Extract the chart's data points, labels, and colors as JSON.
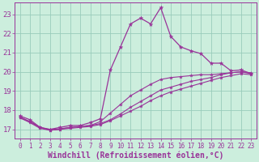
{
  "background_color": "#cceedd",
  "line_color": "#993399",
  "grid_color": "#99ccbb",
  "xlabel": "Windchill (Refroidissement éolien,°C)",
  "xlabel_color": "#993399",
  "xticks": [
    0,
    1,
    2,
    3,
    4,
    5,
    6,
    7,
    8,
    9,
    10,
    11,
    12,
    13,
    14,
    15,
    16,
    17,
    18,
    19,
    20,
    21,
    22,
    23
  ],
  "yticks": [
    17,
    18,
    19,
    20,
    21,
    22,
    23
  ],
  "ylim": [
    16.5,
    23.6
  ],
  "xlim": [
    -0.5,
    23.5
  ],
  "line1": [
    17.7,
    17.5,
    17.1,
    17.0,
    17.1,
    17.2,
    17.2,
    17.35,
    17.55,
    20.1,
    21.3,
    22.5,
    22.8,
    22.5,
    23.35,
    21.85,
    21.3,
    21.1,
    20.95,
    20.45,
    20.45,
    20.05,
    20.1,
    19.9
  ],
  "line2": [
    17.6,
    17.4,
    17.1,
    16.95,
    17.0,
    17.1,
    17.15,
    17.2,
    17.3,
    17.5,
    17.8,
    18.15,
    18.45,
    18.75,
    19.05,
    19.2,
    19.35,
    19.5,
    19.6,
    19.7,
    19.85,
    19.95,
    20.0,
    19.95
  ],
  "line3": [
    17.6,
    17.35,
    17.05,
    16.95,
    17.0,
    17.05,
    17.1,
    17.15,
    17.25,
    17.45,
    17.7,
    17.95,
    18.2,
    18.5,
    18.75,
    18.95,
    19.1,
    19.25,
    19.4,
    19.55,
    19.7,
    19.8,
    19.9,
    19.85
  ],
  "line4": [
    17.65,
    17.4,
    17.1,
    16.98,
    17.03,
    17.1,
    17.15,
    17.2,
    17.4,
    17.85,
    18.3,
    18.75,
    19.05,
    19.35,
    19.6,
    19.7,
    19.75,
    19.8,
    19.85,
    19.85,
    19.9,
    19.95,
    20.0,
    19.9
  ],
  "tick_label_size": 6.5,
  "xtick_label_size": 5.5,
  "xlabel_size": 7.0,
  "marker_size_main": 3.5,
  "marker_size_sub": 3.0,
  "linewidth_main": 0.9,
  "linewidth_sub": 0.8
}
